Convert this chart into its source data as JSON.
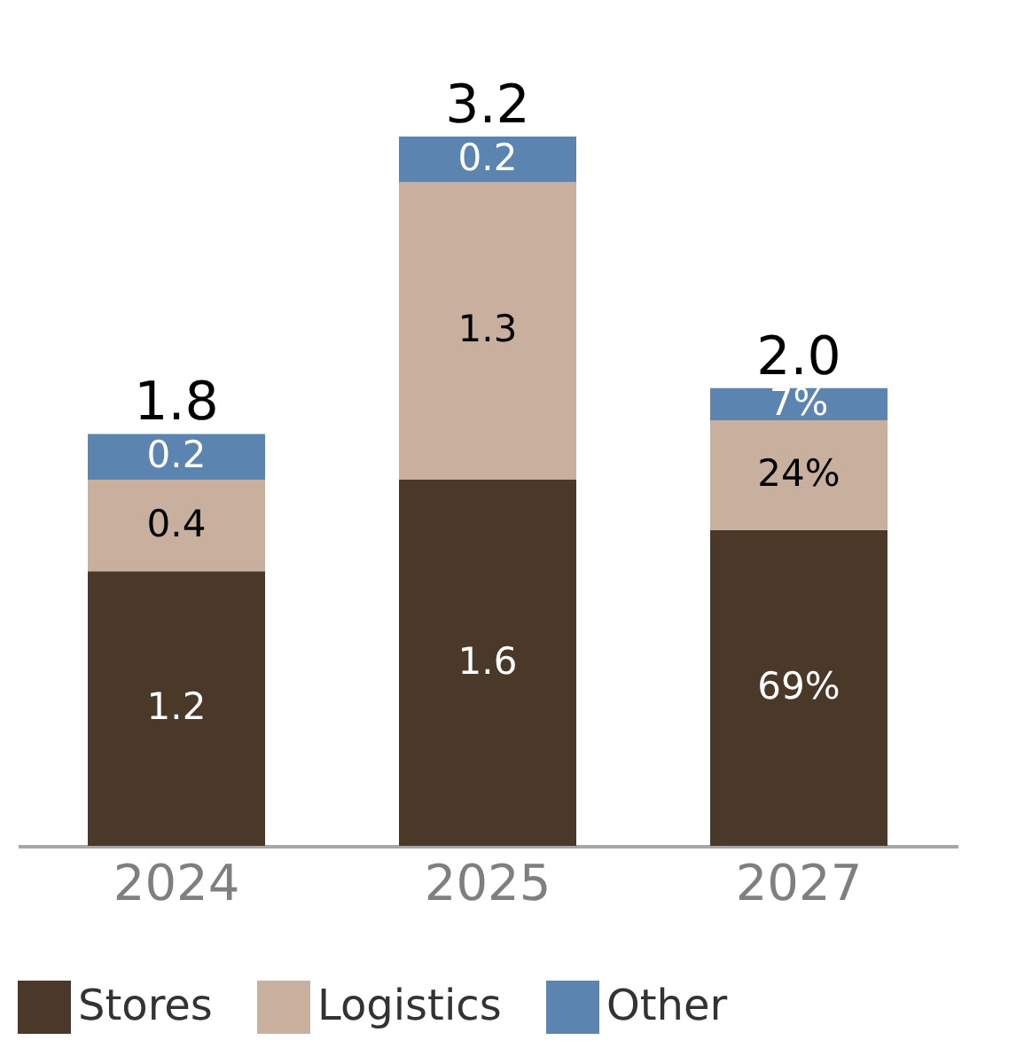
{
  "chart_data": {
    "type": "bar",
    "stacked": true,
    "categories": [
      "2024",
      "2025",
      "2027"
    ],
    "series": [
      {
        "name": "Stores",
        "color": "#4a3828",
        "values": [
          1.2,
          1.6,
          1.38
        ],
        "value_labels": [
          "1.2",
          "1.6",
          null
        ]
      },
      {
        "name": "Logistics",
        "color": "#c9b09e",
        "values": [
          0.4,
          1.3,
          0.48
        ],
        "value_labels": [
          "0.4",
          "1.3",
          null
        ]
      },
      {
        "name": "Other",
        "color": "#5b84b1",
        "values": [
          0.2,
          0.2,
          0.14
        ],
        "value_labels": [
          "0.2",
          "0.2",
          null
        ]
      }
    ],
    "totals": [
      "1.8",
      "3.2",
      "2.0"
    ],
    "annotations": [
      "69%",
      "24%",
      "7%"
    ],
    "tick_labels": "x",
    "grid": false,
    "legend": "bottom"
  }
}
